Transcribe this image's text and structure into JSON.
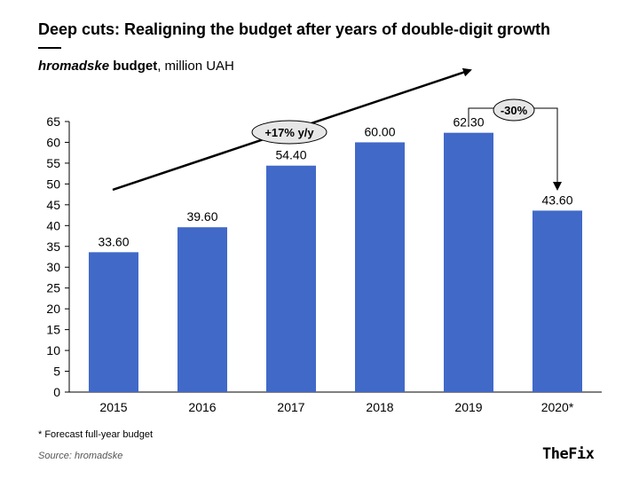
{
  "title": "Deep cuts: Realigning the budget after years of double-digit growth",
  "subtitle": {
    "italic_bold": "hromadske",
    "bold": " budget",
    "rest": ", million UAH"
  },
  "footnote": "* Forecast full-year budget",
  "source": "Source: hromadske",
  "logo": "TheFix",
  "colors": {
    "bar": "#4169c8",
    "axis": "#000000"
  },
  "chart_data": {
    "type": "bar",
    "title": "Deep cuts: Realigning the budget after years of double-digit growth",
    "ylabel": "million UAH",
    "categories": [
      "2015",
      "2016",
      "2017",
      "2018",
      "2019",
      "2020*"
    ],
    "values": [
      33.6,
      39.6,
      54.4,
      60.0,
      62.3,
      43.6
    ],
    "value_labels": [
      "33.60",
      "39.60",
      "54.40",
      "60.00",
      "62.30",
      "43.60"
    ],
    "ylim": [
      0,
      65
    ],
    "yticks": [
      0,
      5,
      10,
      15,
      20,
      25,
      30,
      35,
      40,
      45,
      50,
      55,
      60,
      65
    ],
    "grid": false,
    "annotations": [
      {
        "text": "+17% y/y",
        "type": "trend-arrow",
        "from": "2015",
        "to": "2019"
      },
      {
        "text": "-30%",
        "type": "drop-arrow",
        "from": "2019",
        "to": "2020*"
      }
    ]
  }
}
